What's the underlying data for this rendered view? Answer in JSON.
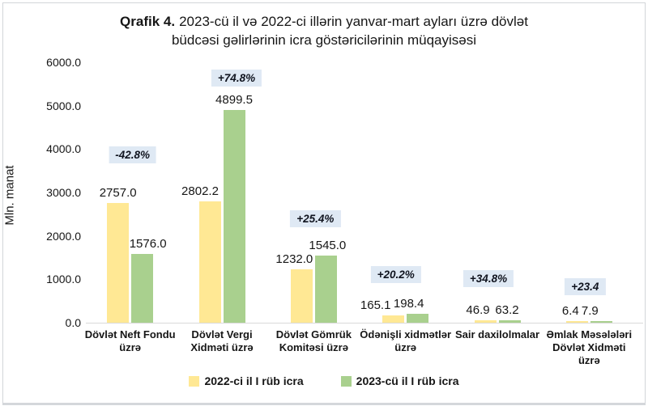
{
  "title": {
    "prefix": "Qrafik 4.",
    "line1_rest": "2023-cü il və 2022-ci illərin yanvar-mart ayları üzrə dövlət",
    "line2": "büdcəsi gəlirlərinin icra göstəricilərinin müqayisəsi"
  },
  "chart_data": {
    "type": "bar",
    "title": "Qrafik 4. 2023-cü il və 2022-ci illərin yanvar-mart ayları üzrə dövlət büdcəsi gəlirlərinin icra göstəricilərinin müqayisəsi",
    "ylabel": "Mln. manat",
    "ylim": [
      0,
      6000
    ],
    "ytick_labels": [
      "0.0",
      "1000.0",
      "2000.0",
      "3000.0",
      "4000.0",
      "5000.0",
      "6000.0"
    ],
    "grid": false,
    "legend_position": "bottom",
    "categories": [
      "Dövlət Neft Fondu\nüzrə",
      "Dövlət Vergi\nXidməti üzrə",
      "Dövlət Gömrük\nKomitəsi üzrə",
      "Ödənişli xidmətlər\nüzrə",
      "Sair daxilolmalar",
      "Əmlak Məsələləri\nDövlət Xidməti\nüzrə"
    ],
    "series": [
      {
        "name": "2022-ci il I rüb icra",
        "color": "#ffe894",
        "values": [
          2757.0,
          2802.2,
          1232.0,
          165.1,
          46.9,
          6.4
        ],
        "value_labels": [
          "2757.0",
          "2802.2",
          "1232.0",
          "165.1",
          "46.9",
          "6.4"
        ]
      },
      {
        "name": "2023-cü il I rüb icra",
        "color": "#a9d08e",
        "values": [
          1576.0,
          4899.5,
          1545.0,
          198.4,
          63.2,
          7.9
        ],
        "value_labels": [
          "1576.0",
          "4899.5",
          "1545.0",
          "198.4",
          "63.2",
          "7.9"
        ]
      }
    ],
    "change_badges": [
      "-42.8%",
      "+74.8%",
      "+25.4%",
      "+20.2%",
      "+34.8%",
      "+23.4"
    ],
    "badge_style": {
      "bg": "#dfe9f4",
      "color": "#10141f"
    },
    "axis_color": "#d9d9d9"
  }
}
